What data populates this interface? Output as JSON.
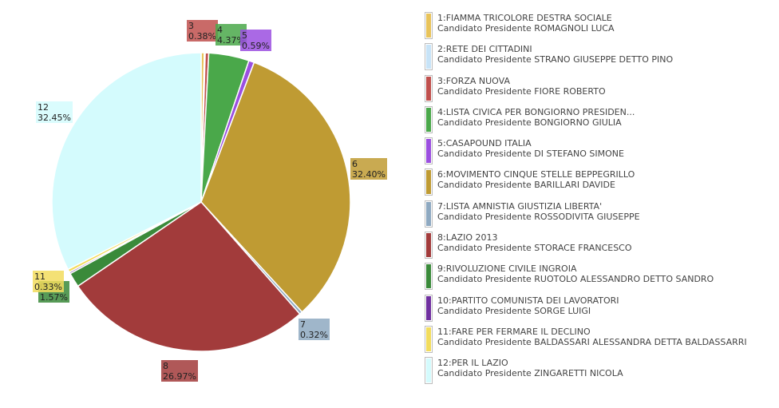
{
  "chart_data": {
    "type": "pie",
    "title": "",
    "slices": [
      {
        "id": "1",
        "value": 0.34,
        "percent_label": "",
        "color": "#e8c35a",
        "list": "1:FIAMMA TRICOLORE DESTRA SOCIALE",
        "candidate": "Candidato Presidente ROMAGNOLI LUCA"
      },
      {
        "id": "2",
        "value": 0.1,
        "percent_label": "",
        "color": "#c7e3f7",
        "list": "2:RETE DEI CITTADINI",
        "candidate": "Candidato Presidente STRANO GIUSEPPE DETTO PINO"
      },
      {
        "id": "3",
        "value": 0.38,
        "percent_label": "0.38%",
        "color": "#c0504d",
        "list": "3:FORZA NUOVA",
        "candidate": "Candidato Presidente FIORE ROBERTO"
      },
      {
        "id": "4",
        "value": 4.37,
        "percent_label": "4.37%",
        "color": "#4aa84a",
        "list": "4:LISTA CIVICA PER BONGIORNO PRESIDEN...",
        "candidate": "Candidato Presidente BONGIORNO GIULIA"
      },
      {
        "id": "5",
        "value": 0.59,
        "percent_label": "0.59%",
        "color": "#9b4fe0",
        "list": "5:CASAPOUND ITALIA",
        "candidate": "Candidato Presidente DI STEFANO SIMONE"
      },
      {
        "id": "6",
        "value": 32.4,
        "percent_label": "32.40%",
        "color": "#bf9b33",
        "list": "6:MOVIMENTO CINQUE STELLE BEPPEGRILLO",
        "candidate": "Candidato Presidente BARILLARI DAVIDE"
      },
      {
        "id": "7",
        "value": 0.32,
        "percent_label": "0.32%",
        "color": "#8ea9c1",
        "list": "7:LISTA AMNISTIA GIUSTIZIA LIBERTA'",
        "candidate": "Candidato Presidente ROSSODIVITA GIUSEPPE"
      },
      {
        "id": "8",
        "value": 26.97,
        "percent_label": "26.97%",
        "color": "#a23b3b",
        "list": "8:LAZIO 2013",
        "candidate": "Candidato Presidente STORACE FRANCESCO"
      },
      {
        "id": "9",
        "value": 1.57,
        "percent_label": "1.57%",
        "color": "#3a8a3a",
        "list": "9:RIVOLUZIONE CIVILE INGROIA",
        "candidate": "Candidato Presidente RUOTOLO ALESSANDRO DETTO SANDRO"
      },
      {
        "id": "10",
        "value": 0.18,
        "percent_label": "",
        "color": "#7030a0",
        "list": "10:PARTITO COMUNISTA DEI LAVORATORI",
        "candidate": "Candidato Presidente SORGE LUIGI"
      },
      {
        "id": "11",
        "value": 0.33,
        "percent_label": "0.33%",
        "color": "#f2dc5d",
        "list": "11:FARE PER FERMARE IL DECLINO",
        "candidate": "Candidato Presidente BALDASSARI ALESSANDRA DETTA BALDASSARRI"
      },
      {
        "id": "12",
        "value": 32.45,
        "percent_label": "32.45%",
        "color": "#d4fbfd",
        "list": "12:PER IL LAZIO",
        "candidate": "Candidato Presidente ZINGARETTI NICOLA"
      }
    ],
    "legend_position": "right"
  }
}
